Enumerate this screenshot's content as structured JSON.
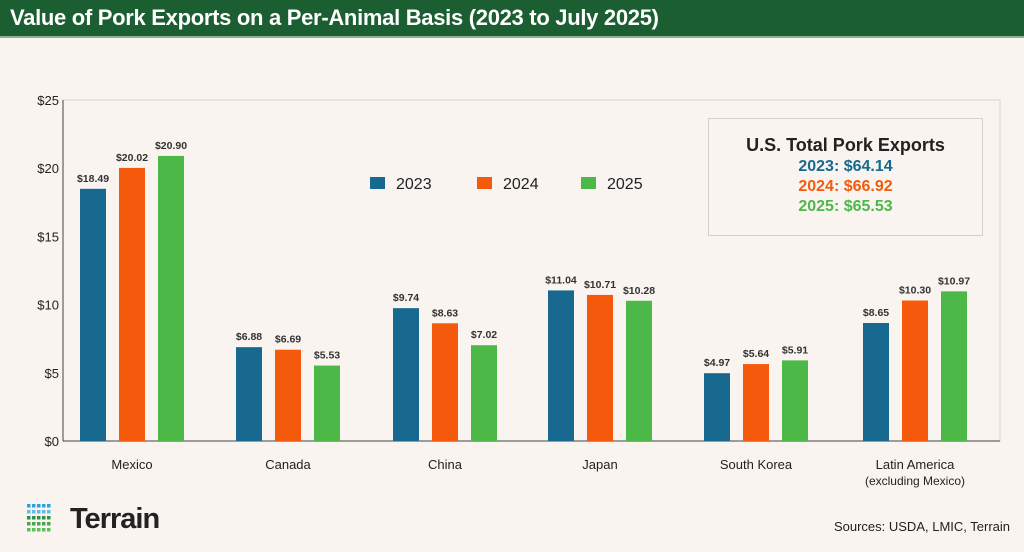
{
  "header": {
    "title": "Value of Pork Exports on a Per-Animal Basis (2023 to July 2025)"
  },
  "chart_data": {
    "type": "bar",
    "title": "Value of Pork Exports on a Per-Animal Basis (2023 to July 2025)",
    "categories": [
      "Mexico",
      "Canada",
      "China",
      "Japan",
      "South Korea",
      "Latin America"
    ],
    "category_sublabels": [
      "",
      "",
      "",
      "",
      "",
      "(excluding Mexico)"
    ],
    "series": [
      {
        "name": "2023",
        "color": "#17698f",
        "values": [
          18.49,
          6.88,
          9.74,
          11.04,
          4.97,
          8.65
        ],
        "labels": [
          "$18.49",
          "$6.88",
          "$9.74",
          "$11.04",
          "$4.97",
          "$8.65"
        ]
      },
      {
        "name": "2024",
        "color": "#f55a0c",
        "values": [
          20.02,
          6.69,
          8.63,
          10.71,
          5.64,
          10.3
        ],
        "labels": [
          "$20.02",
          "$6.69",
          "$8.63",
          "$10.71",
          "$5.64",
          "$10.30"
        ]
      },
      {
        "name": "2025",
        "color": "#4cb848",
        "values": [
          20.9,
          5.53,
          7.02,
          10.28,
          5.91,
          10.97
        ],
        "labels": [
          "$20.90",
          "$5.53",
          "$7.02",
          "$10.28",
          "$5.91",
          "$10.97"
        ]
      }
    ],
    "ylim": [
      0,
      25
    ],
    "yticks": [
      0,
      5,
      10,
      15,
      20,
      25
    ],
    "ytick_labels": [
      "$0",
      "$5",
      "$10",
      "$15",
      "$20",
      "$25"
    ],
    "legend_position": "top-center",
    "grid": false
  },
  "info_box": {
    "title": "U.S. Total Pork Exports",
    "lines": [
      {
        "text": "2023: $64.14",
        "color": "#17698f"
      },
      {
        "text": "2024: $66.92",
        "color": "#f55a0c"
      },
      {
        "text": "2025: $65.53",
        "color": "#4cb848"
      }
    ]
  },
  "logo": {
    "text": "Terrain"
  },
  "sources": "Sources: USDA, LMIC, Terrain"
}
